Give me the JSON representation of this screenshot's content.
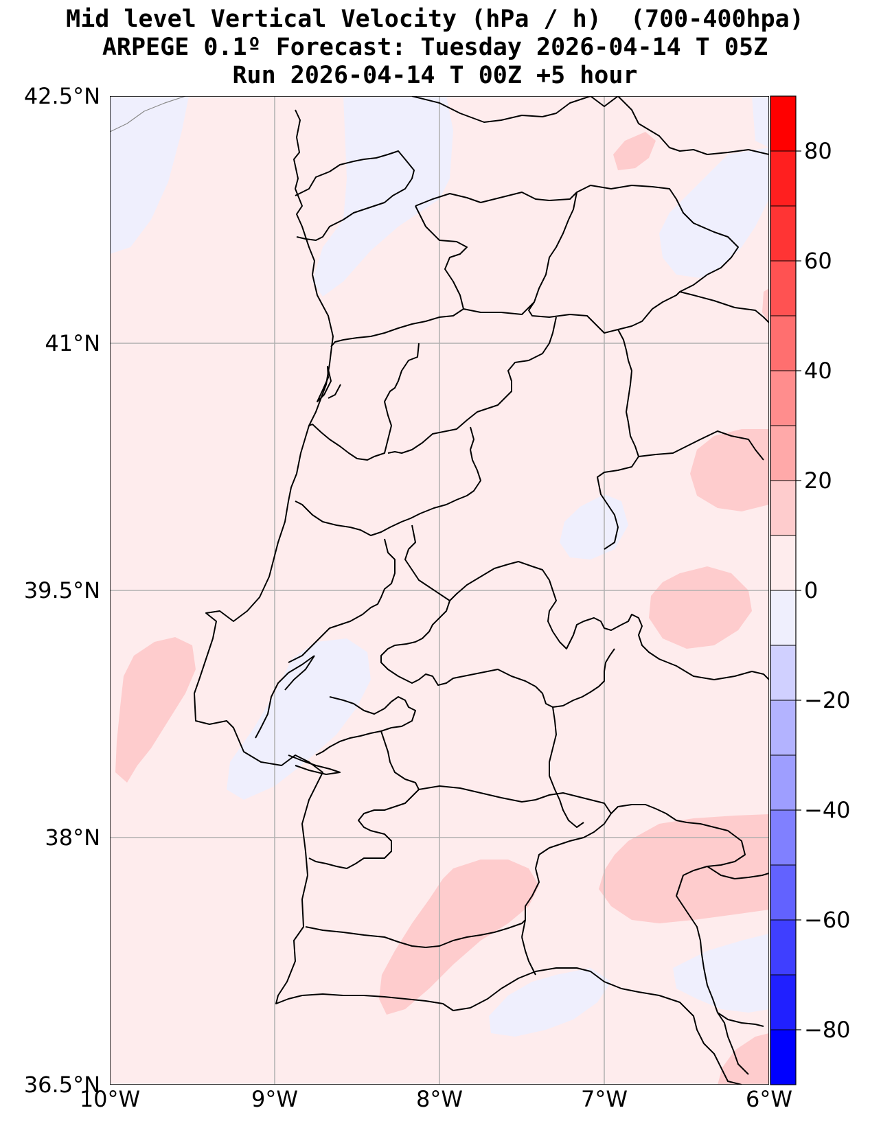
{
  "title": {
    "line1": "Mid level Vertical Velocity (hPa / h)  (700-400hpa)",
    "line2": "ARPEGE 0.1º Forecast: Tuesday 2026-04-14 T 05Z",
    "line3": "Run 2026-04-14 T 00Z +5 hour"
  },
  "map": {
    "lon_range": [
      -10,
      -6
    ],
    "lat_range": [
      36.5,
      42.5
    ],
    "lon_ticks": [
      {
        "value": -10,
        "label": "10°W"
      },
      {
        "value": -9,
        "label": "9°W"
      },
      {
        "value": -8,
        "label": "8°W"
      },
      {
        "value": -7,
        "label": "7°W"
      },
      {
        "value": -6,
        "label": "6°W"
      }
    ],
    "lat_ticks": [
      {
        "value": 36.5,
        "label": "36.5°N"
      },
      {
        "value": 38,
        "label": "38°N"
      },
      {
        "value": 39.5,
        "label": "39.5°N"
      },
      {
        "value": 41,
        "label": "41°N"
      },
      {
        "value": 42.5,
        "label": "42.5°N"
      }
    ],
    "grid": true,
    "colors": {
      "background": "#feeced",
      "weak_negative": "#efeffd",
      "weak_positive": "#fecccd",
      "coastline": "#000000",
      "gridline": "#b0b0b0"
    }
  },
  "colorbar": {
    "min": -90,
    "max": 90,
    "levels": [
      -90,
      -80,
      -70,
      -60,
      -50,
      -40,
      -30,
      -20,
      -10,
      0,
      10,
      20,
      30,
      40,
      50,
      60,
      70,
      80,
      90
    ],
    "colors": [
      "#0000ff",
      "#1c1cff",
      "#3939ff",
      "#5555ff",
      "#7171ff",
      "#8e8eff",
      "#aaaaff",
      "#c6c6ff",
      "#e3e3ff",
      "#ffeeee",
      "#ffcccc",
      "#ffaaaa",
      "#ff8e8e",
      "#ff7171",
      "#ff5555",
      "#ff3939",
      "#ff1c1c",
      "#ff0000"
    ],
    "colors_display": [
      "#0000ff",
      "#2020ff",
      "#3f3fff",
      "#6262ff",
      "#8080ff",
      "#9e9eff",
      "#b3b3ff",
      "#d0d0ff",
      "#efeffd",
      "#feeced",
      "#fecccd",
      "#ffa9a9",
      "#ff8d8d",
      "#ff6f6f",
      "#ff5252",
      "#ff3434",
      "#ff1f1f",
      "#ff0000"
    ],
    "tick_values": [
      80,
      60,
      40,
      20,
      0,
      -20,
      -40,
      -60,
      -80
    ],
    "tick_labels": [
      "80",
      "60",
      "40",
      "20",
      "0",
      "−20",
      "−40",
      "−60",
      "−80"
    ]
  }
}
